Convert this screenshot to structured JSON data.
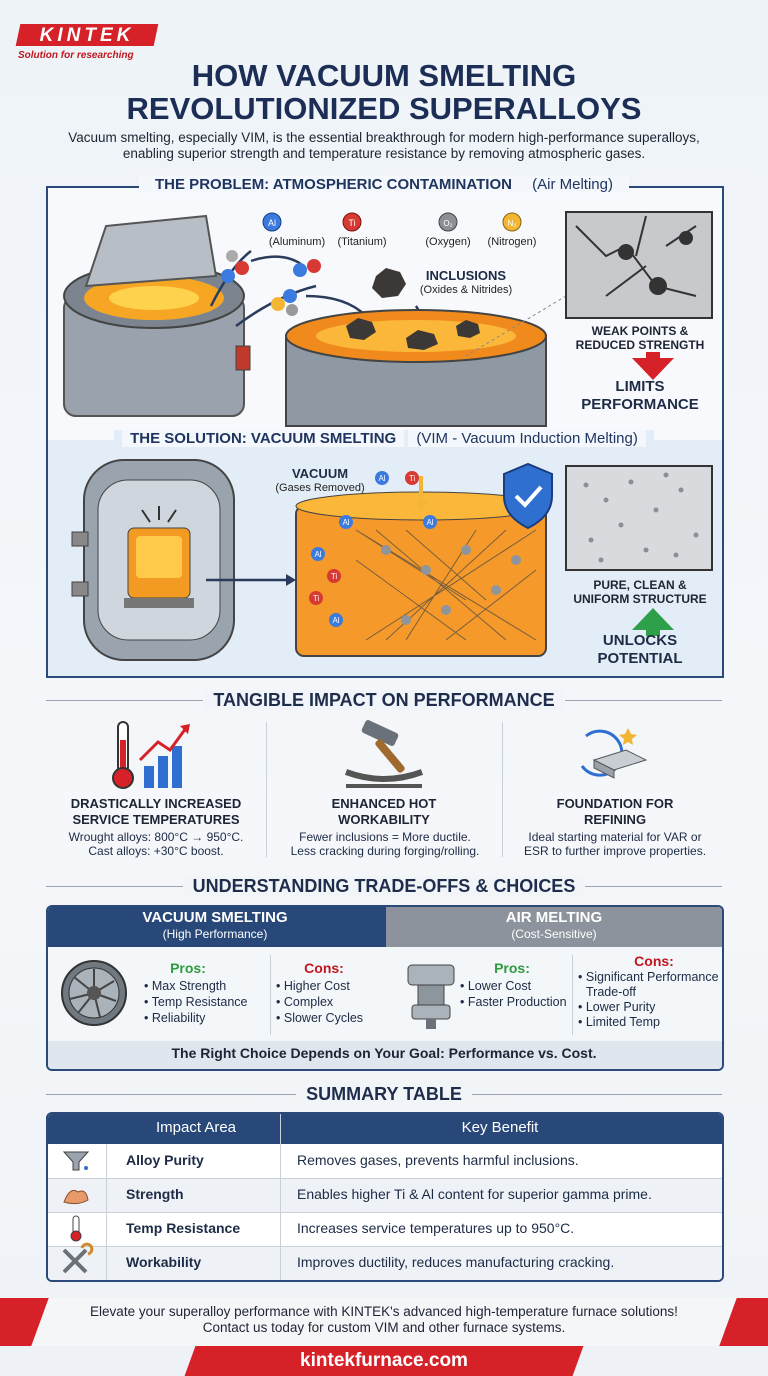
{
  "logo": {
    "brand": "KINTEK",
    "tagline": "Solution for researching"
  },
  "header": {
    "title_lines": [
      "HOW VACUUM SMELTING",
      "REVOLUTIONIZED SUPERALLOYS"
    ],
    "intro": "Vacuum smelting, especially VIM, is the essential breakthrough for modern high-performance superalloys, enabling superior strength and temperature resistance by removing atmospheric gases."
  },
  "problem": {
    "heading": "THE PROBLEM: ATMOSPHERIC CONTAMINATION",
    "heading_note": "(Air Melting)",
    "elements": [
      {
        "symbol": "Al",
        "name": "(Aluminum)"
      },
      {
        "symbol": "Ti",
        "name": "(Titanium)"
      },
      {
        "symbol": "O₂",
        "name": "(Oxygen)"
      },
      {
        "symbol": "N₂",
        "name": "(Nitrogen)"
      }
    ],
    "inclusions": "INCLUSIONS",
    "inclusions_note": "(Oxides & Nitrides)",
    "weak_points": "WEAK POINTS & REDUCED STRENGTH",
    "result": "LIMITS PERFORMANCE"
  },
  "solution": {
    "heading": "THE SOLUTION: VACUUM SMELTING",
    "heading_note": "(VIM - Vacuum Induction Melting)",
    "vacuum": "VACUUM",
    "vacuum_note": "(Gases Removed)",
    "structure": "PURE, CLEAN & UNIFORM STRUCTURE",
    "result": "UNLOCKS POTENTIAL"
  },
  "impact": {
    "heading": "TANGIBLE IMPACT ON PERFORMANCE",
    "items": [
      {
        "title": "DRASTICALLY INCREASED SERVICE TEMPERATURES",
        "lines": [
          "Wrought alloys: 800°C → 950°C.",
          "Cast alloys: +30°C boost."
        ]
      },
      {
        "title": "ENHANCED HOT WORKABILITY",
        "lines": [
          "Fewer inclusions = More ductile.",
          "Less cracking during forging/rolling."
        ]
      },
      {
        "title": "FOUNDATION FOR REFINING",
        "lines": [
          "Ideal starting material for VAR or",
          "ESR to further improve properties."
        ]
      }
    ]
  },
  "tradeoffs": {
    "heading": "UNDERSTANDING TRADE-OFFS & CHOICES",
    "options": [
      {
        "title": "VACUUM SMELTING",
        "subtitle": "(High Performance)",
        "pros_label": "Pros:",
        "pros": [
          "Max Strength",
          "Temp Resistance",
          "Reliability"
        ],
        "cons_label": "Cons:",
        "cons": [
          "Higher Cost",
          "Complex",
          "Slower Cycles"
        ]
      },
      {
        "title": "AIR MELTING",
        "subtitle": "(Cost-Sensitive)",
        "pros_label": "Pros:",
        "pros": [
          "Lower Cost",
          "Faster Production"
        ],
        "cons_label": "Cons:",
        "cons": [
          "Significant Performance Trade-off",
          "Lower Purity",
          "Limited Temp"
        ]
      }
    ],
    "conclusion": "The Right Choice Depends on Your Goal: Performance vs. Cost."
  },
  "summary": {
    "heading": "SUMMARY TABLE",
    "columns": [
      "Impact Area",
      "Key Benefit"
    ],
    "rows": [
      [
        "Alloy Purity",
        "Removes gases, prevents harmful inclusions."
      ],
      [
        "Strength",
        "Enables higher Ti & Al content for superior gamma prime."
      ],
      [
        "Temp Resistance",
        "Increases service temperatures up to 950°C."
      ],
      [
        "Workability",
        "Improves ductility, reduces manufacturing cracking."
      ]
    ]
  },
  "footer": {
    "lines": [
      "Elevate your superalloy performance with KINTEK's advanced high-temperature furnace solutions!",
      "Contact us today for custom VIM and other furnace systems."
    ],
    "url": "kintekfurnace.com"
  }
}
